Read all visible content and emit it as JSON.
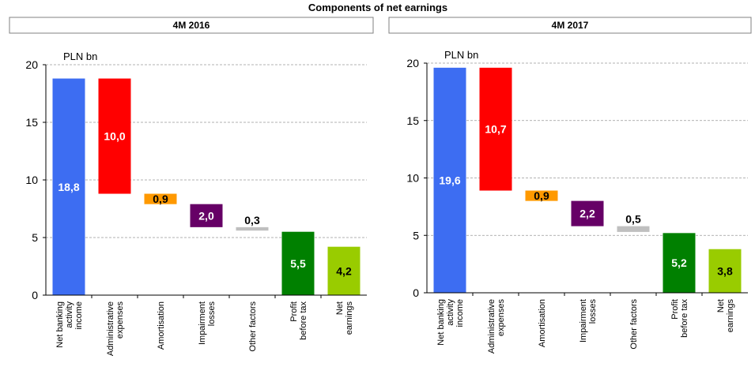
{
  "title": "Components of net earnings",
  "chart_data": [
    {
      "type": "waterfall",
      "title": "4M 2016",
      "unit": "PLN bn",
      "categories": [
        [
          "Net banking",
          "activity",
          "income"
        ],
        [
          "Administrative",
          "expenses"
        ],
        [
          "Amortisation"
        ],
        [
          "Impairment",
          "losses"
        ],
        [
          "Other factors"
        ],
        [
          "Profit",
          "before tax"
        ],
        [
          "Net",
          "earnings"
        ]
      ],
      "values": [
        18.8,
        10.0,
        0.9,
        2.0,
        0.3,
        5.5,
        4.2
      ],
      "value_labels": [
        "18,8",
        "10,0",
        "0,9",
        "2,0",
        "0,3",
        "5,5",
        "4,2"
      ],
      "measures": [
        "absolute",
        "decrease",
        "decrease",
        "decrease",
        "decrease",
        "absolute",
        "absolute"
      ],
      "colors": [
        "#3d6df2",
        "#ff0000",
        "#ff9900",
        "#660066",
        "#bfbfbf",
        "#008000",
        "#99cc00"
      ],
      "ylim": [
        0,
        20
      ],
      "yticks": [
        0,
        5,
        10,
        15,
        20
      ],
      "grid": true
    },
    {
      "type": "waterfall",
      "title": "4M 2017",
      "unit": "PLN bn",
      "categories": [
        [
          "Net banking",
          "activity",
          "income"
        ],
        [
          "Administrative",
          "expenses"
        ],
        [
          "Amortisation"
        ],
        [
          "Impairment",
          "losses"
        ],
        [
          "Other factors"
        ],
        [
          "Profit",
          "before tax"
        ],
        [
          "Net",
          "earnings"
        ]
      ],
      "values": [
        19.6,
        10.7,
        0.9,
        2.2,
        0.5,
        5.2,
        3.8
      ],
      "value_labels": [
        "19,6",
        "10,7",
        "0,9",
        "2,2",
        "0,5",
        "5,2",
        "3,8"
      ],
      "measures": [
        "absolute",
        "decrease",
        "decrease",
        "decrease",
        "decrease",
        "absolute",
        "absolute"
      ],
      "colors": [
        "#3d6df2",
        "#ff0000",
        "#ff9900",
        "#660066",
        "#bfbfbf",
        "#008000",
        "#99cc00"
      ],
      "ylim": [
        0,
        20
      ],
      "yticks": [
        0,
        5,
        10,
        15,
        20
      ],
      "grid": true
    }
  ]
}
